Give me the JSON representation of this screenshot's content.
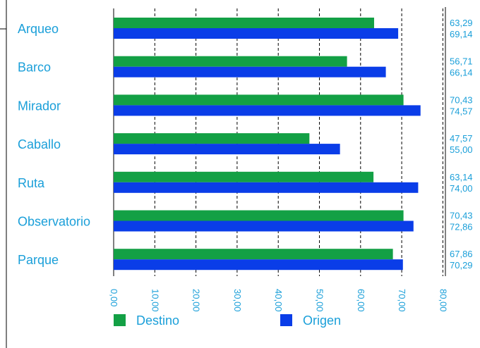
{
  "chart_data": {
    "type": "bar",
    "orientation": "horizontal",
    "categories": [
      "Arqueo",
      "Barco",
      "Mirador",
      "Caballo",
      "Ruta",
      "Observatorio",
      "Parque"
    ],
    "series": [
      {
        "name": "Destino",
        "color": "#13a045",
        "values": [
          63.29,
          56.71,
          70.43,
          47.57,
          63.14,
          70.43,
          67.86
        ],
        "labels": [
          "63,29",
          "56,71",
          "70,43",
          "47,57",
          "63,14",
          "70,43",
          "67,86"
        ]
      },
      {
        "name": "Origen",
        "color": "#0a3de8",
        "values": [
          69.14,
          66.14,
          74.57,
          55.0,
          74.0,
          72.86,
          70.29
        ],
        "labels": [
          "69,14",
          "66,14",
          "74,57",
          "55,00",
          "74,00",
          "72,86",
          "70,29"
        ]
      }
    ],
    "xlim": [
      0,
      80
    ],
    "xticks": [
      0,
      10,
      20,
      30,
      40,
      50,
      60,
      70,
      80
    ],
    "xtick_labels": [
      "0,00",
      "10,00",
      "20,00",
      "30,00",
      "40,00",
      "50,00",
      "60,00",
      "70,00",
      "80,00"
    ],
    "grid": "vertical dashed",
    "legend_position": "bottom",
    "label_color": "#1a9fd9"
  }
}
